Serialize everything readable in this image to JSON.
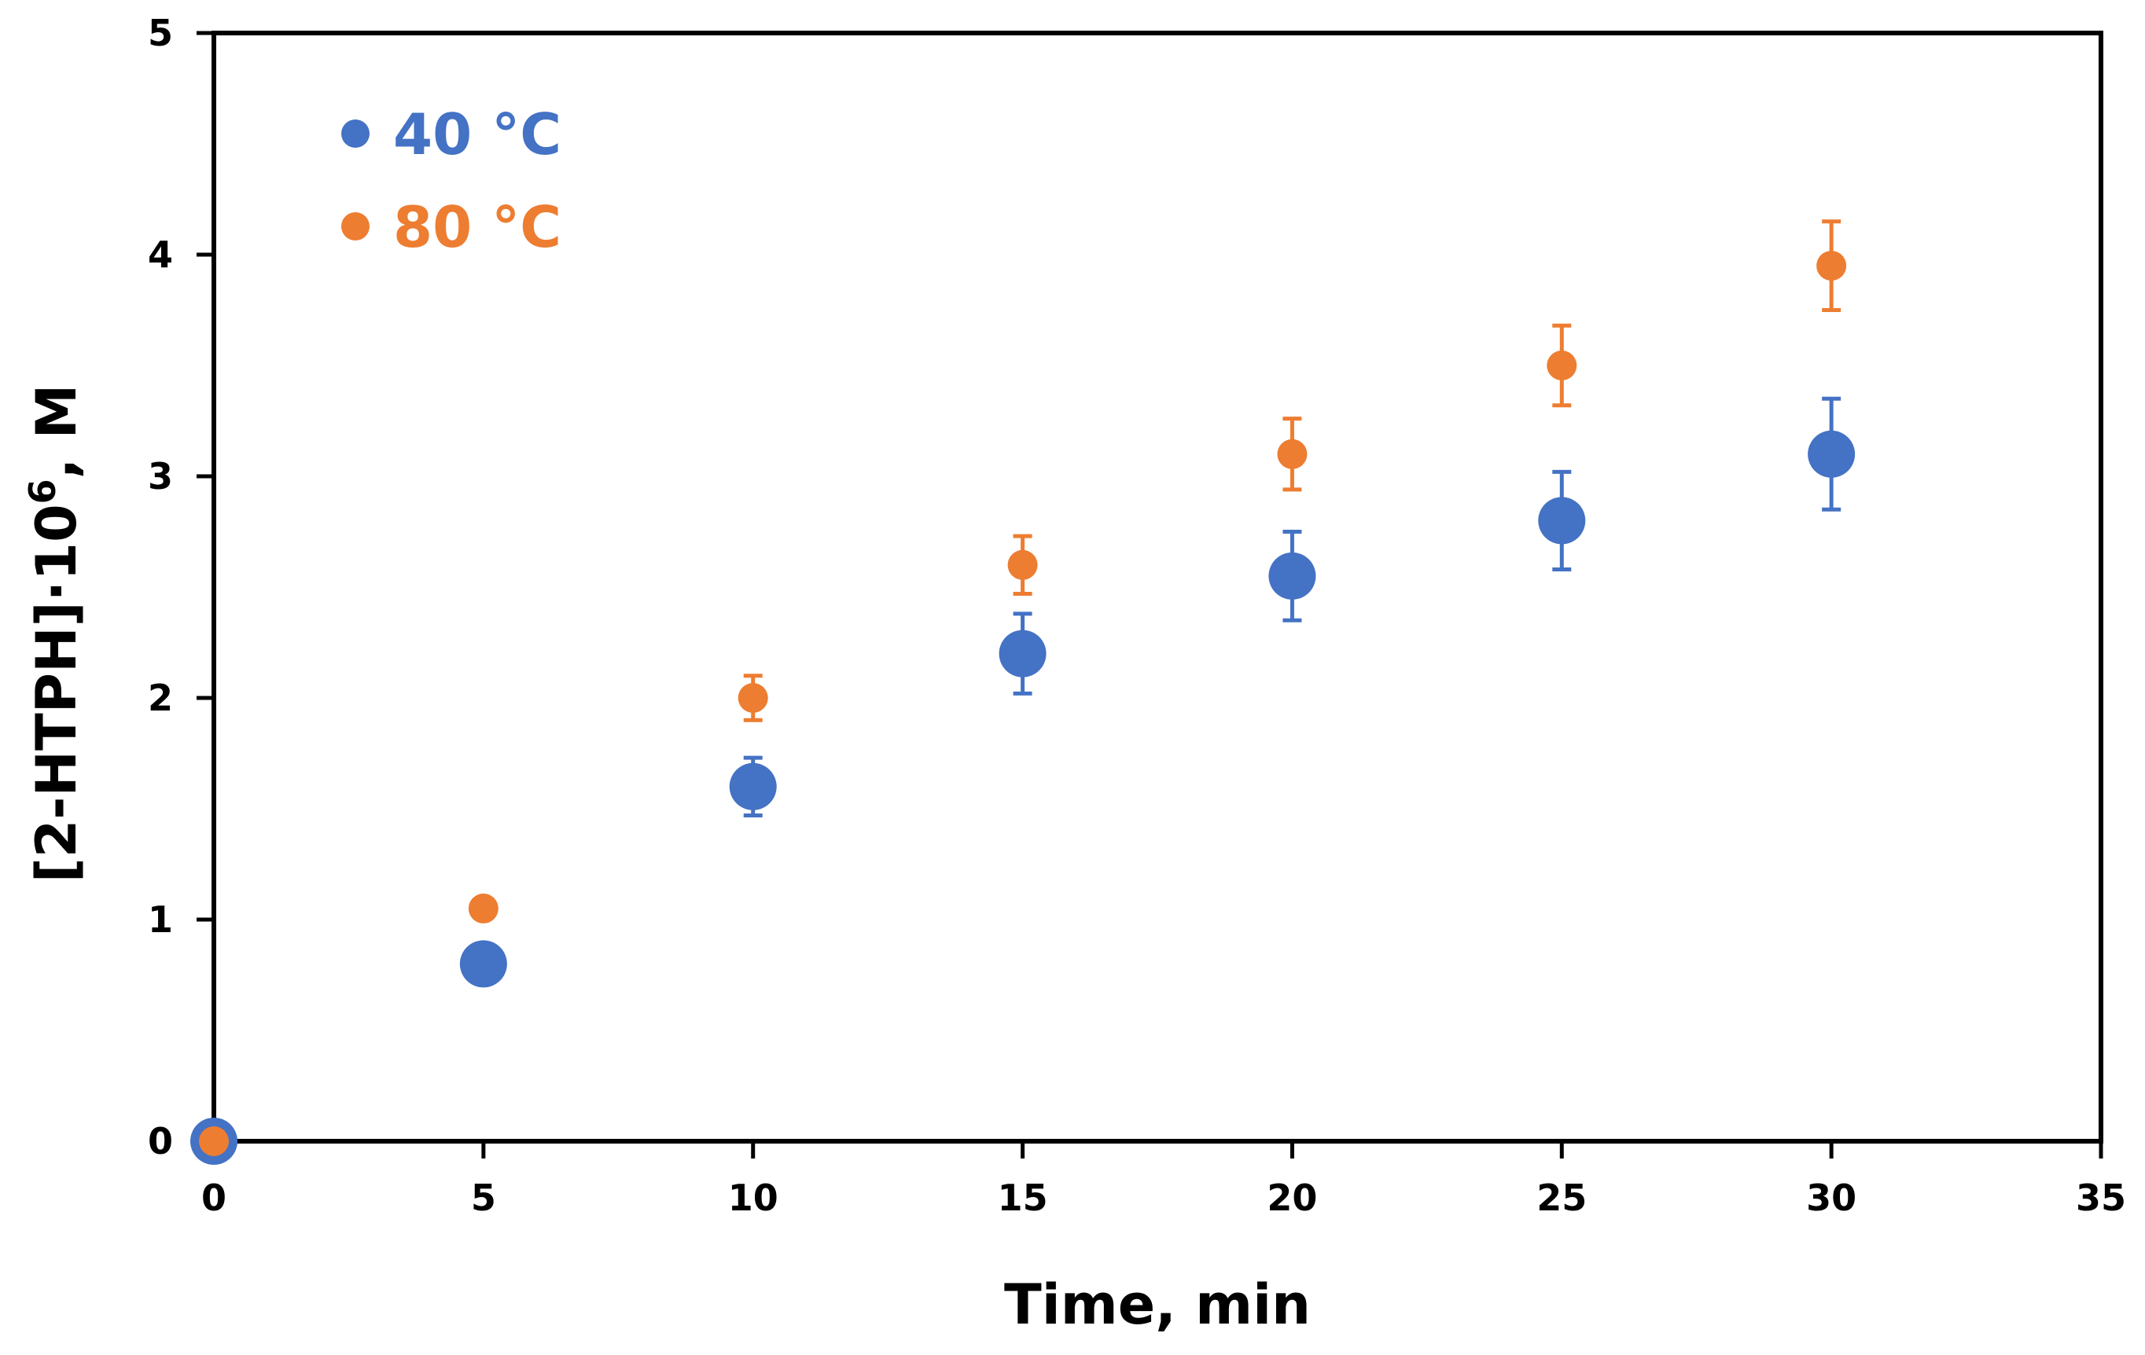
{
  "chart_data": {
    "type": "scatter",
    "title": "",
    "xlabel": "Time, min",
    "ylabel": {
      "main": "[2-HTPH]·10",
      "superscript": "6",
      "suffix": ", M"
    },
    "xlim": [
      0,
      35
    ],
    "ylim": [
      0,
      5
    ],
    "x_ticks": [
      "0",
      "5",
      "10",
      "15",
      "20",
      "25",
      "30",
      "35"
    ],
    "y_ticks": [
      "0",
      "1",
      "2",
      "3",
      "4",
      "5"
    ],
    "grid": false,
    "legend_position": "top-left",
    "series": [
      {
        "name": "40 °C",
        "color": "#4472C4",
        "x": [
          0,
          5,
          10,
          15,
          20,
          25,
          30
        ],
        "y": [
          0,
          0.8,
          1.6,
          2.2,
          2.55,
          2.8,
          3.1
        ],
        "error": [
          0,
          0,
          0.13,
          0.18,
          0.2,
          0.22,
          0.25
        ]
      },
      {
        "name": "80 °C",
        "color": "#ED7D31",
        "x": [
          0,
          5,
          10,
          15,
          20,
          25,
          30
        ],
        "y": [
          0,
          1.05,
          2.0,
          2.6,
          3.1,
          3.5,
          3.95
        ],
        "error": [
          0,
          0,
          0.1,
          0.13,
          0.16,
          0.18,
          0.2
        ]
      }
    ]
  }
}
